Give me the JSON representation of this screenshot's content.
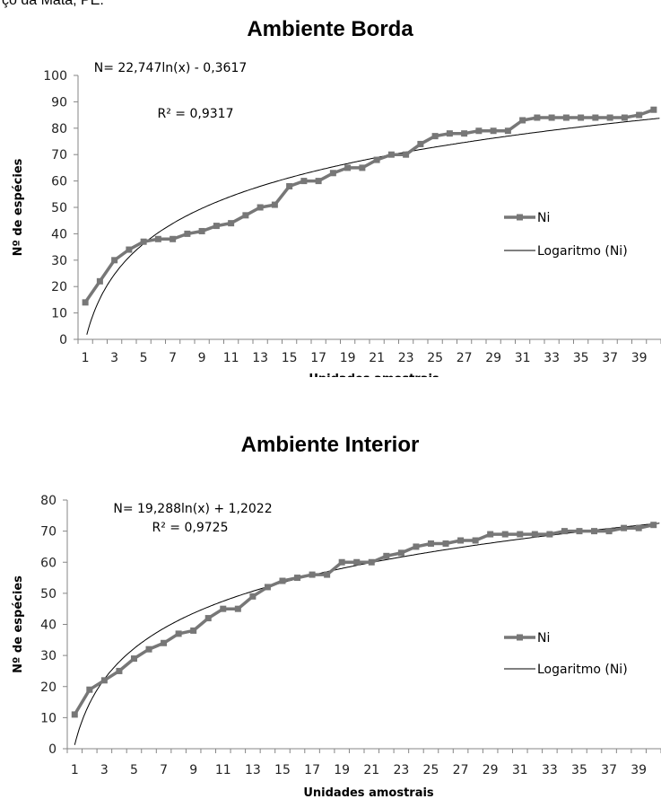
{
  "header_fragment": "ço da Mata, PE.",
  "chart_data": [
    {
      "type": "line",
      "title": "Ambiente Borda",
      "xlabel": "Unidades amostrais",
      "ylabel": "Nº de espécies",
      "ylim": [
        0,
        100
      ],
      "yticks": [
        0,
        10,
        20,
        30,
        40,
        50,
        60,
        70,
        80,
        90,
        100
      ],
      "xticks": [
        1,
        3,
        5,
        7,
        9,
        11,
        13,
        15,
        17,
        19,
        21,
        23,
        25,
        27,
        29,
        31,
        33,
        35,
        37,
        39
      ],
      "x": [
        1,
        2,
        3,
        4,
        5,
        6,
        7,
        8,
        9,
        10,
        11,
        12,
        13,
        14,
        15,
        16,
        17,
        18,
        19,
        20,
        21,
        22,
        23,
        24,
        25,
        26,
        27,
        28,
        29,
        30,
        31,
        32,
        33,
        34,
        35,
        36,
        37,
        38,
        39,
        40
      ],
      "series": [
        {
          "name": "Ni",
          "values": [
            14,
            22,
            30,
            34,
            37,
            38,
            38,
            40,
            41,
            43,
            44,
            47,
            50,
            51,
            58,
            60,
            60,
            63,
            65,
            65,
            68,
            70,
            70,
            74,
            77,
            78,
            78,
            79,
            79,
            79,
            83,
            84,
            84,
            84,
            84,
            84,
            84,
            84,
            85,
            87
          ]
        },
        {
          "name": "Logaritmo (Ni)",
          "trendline": "log",
          "a": 22.747,
          "b": -0.3617
        }
      ],
      "equation": "N= 22,747ln(x) - 0,3617",
      "r2": "R² = 0,9317",
      "legend": "right",
      "grid": false
    },
    {
      "type": "line",
      "title": "Ambiente Interior",
      "xlabel": "Unidades amostrais",
      "ylabel": "Nº de espécies",
      "ylim": [
        0,
        80
      ],
      "yticks": [
        0,
        10,
        20,
        30,
        40,
        50,
        60,
        70,
        80
      ],
      "xticks": [
        1,
        3,
        5,
        7,
        9,
        11,
        13,
        15,
        17,
        19,
        21,
        23,
        25,
        27,
        29,
        31,
        33,
        35,
        37,
        39
      ],
      "x": [
        1,
        2,
        3,
        4,
        5,
        6,
        7,
        8,
        9,
        10,
        11,
        12,
        13,
        14,
        15,
        16,
        17,
        18,
        19,
        20,
        21,
        22,
        23,
        24,
        25,
        26,
        27,
        28,
        29,
        30,
        31,
        32,
        33,
        34,
        35,
        36,
        37,
        38,
        39,
        40
      ],
      "series": [
        {
          "name": "Ni",
          "values": [
            11,
            19,
            22,
            25,
            29,
            32,
            34,
            37,
            38,
            42,
            45,
            45,
            49,
            52,
            54,
            55,
            56,
            56,
            60,
            60,
            60,
            62,
            63,
            65,
            66,
            66,
            67,
            67,
            69,
            69,
            69,
            69,
            69,
            70,
            70,
            70,
            70,
            71,
            71,
            72
          ]
        },
        {
          "name": "Logaritmo (Ni)",
          "trendline": "log",
          "a": 19.288,
          "b": 1.2022
        }
      ],
      "equation": "N= 19,288ln(x) + 1,2022",
      "r2": "R² = 0,9725",
      "legend": "right",
      "grid": false
    }
  ]
}
